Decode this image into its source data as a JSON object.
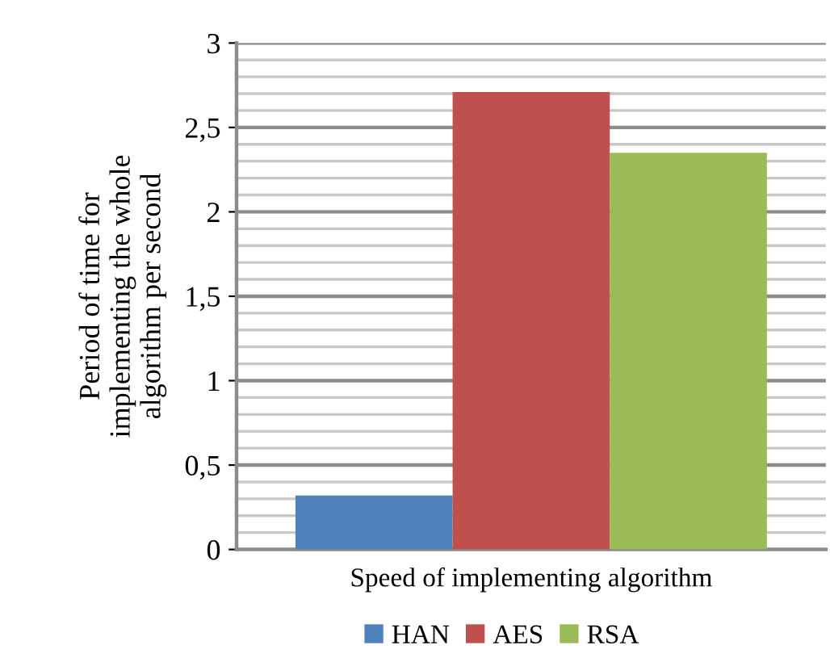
{
  "chart_data": {
    "type": "bar",
    "ylabel": "Period of time for\nimplementing the whole\nalgorithm per second",
    "categories": [
      "Speed of implementing algorithm"
    ],
    "series": [
      {
        "name": "HAN",
        "color": "#4f81bd",
        "values": [
          0.32
        ]
      },
      {
        "name": "AES",
        "color": "#c0504d",
        "values": [
          2.71
        ]
      },
      {
        "name": "RSA",
        "color": "#9bbb59",
        "values": [
          2.35
        ]
      }
    ],
    "ylim": [
      0,
      3
    ],
    "yticks": [
      {
        "value": 0,
        "label": "0"
      },
      {
        "value": 0.1,
        "label": null
      },
      {
        "value": 0.2,
        "label": null
      },
      {
        "value": 0.3,
        "label": null
      },
      {
        "value": 0.4,
        "label": null
      },
      {
        "value": 0.5,
        "label": "0,5"
      },
      {
        "value": 0.6,
        "label": null
      },
      {
        "value": 0.7,
        "label": null
      },
      {
        "value": 0.8,
        "label": null
      },
      {
        "value": 0.9,
        "label": null
      },
      {
        "value": 1,
        "label": "1"
      },
      {
        "value": 1.1,
        "label": null
      },
      {
        "value": 1.2,
        "label": null
      },
      {
        "value": 1.3,
        "label": null
      },
      {
        "value": 1.4,
        "label": null
      },
      {
        "value": 1.5,
        "label": "1,5"
      },
      {
        "value": 1.6,
        "label": null
      },
      {
        "value": 1.7,
        "label": null
      },
      {
        "value": 1.8,
        "label": null
      },
      {
        "value": 1.9,
        "label": null
      },
      {
        "value": 2,
        "label": "2"
      },
      {
        "value": 2.1,
        "label": null
      },
      {
        "value": 2.2,
        "label": null
      },
      {
        "value": 2.3,
        "label": null
      },
      {
        "value": 2.4,
        "label": null
      },
      {
        "value": 2.5,
        "label": "2,5"
      },
      {
        "value": 2.6,
        "label": null
      },
      {
        "value": 2.7,
        "label": null
      },
      {
        "value": 2.8,
        "label": null
      },
      {
        "value": 2.9,
        "label": null
      },
      {
        "value": 3,
        "label": "3"
      }
    ],
    "grid": "y",
    "legend": "bottom"
  }
}
